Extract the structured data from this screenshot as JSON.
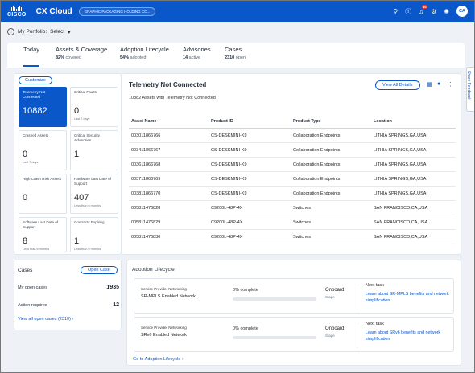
{
  "header": {
    "logo_text": "CISCO",
    "app_title": "CX Cloud",
    "company_chip": "GRAPHIC PACKAGING HOLDING CO...",
    "notification_count": "10",
    "user_initials": "CA",
    "icons": [
      "search-icon",
      "help-icon",
      "bell-icon",
      "settings-icon",
      "gear-icon",
      "avatar"
    ]
  },
  "portfolio": {
    "label": "My Portfolio:",
    "value": "Select"
  },
  "tabs": [
    {
      "label": "Today",
      "sub": "",
      "bold": ""
    },
    {
      "label": "Assets & Coverage",
      "bold": "82%",
      "sub": "covered"
    },
    {
      "label": "Adoption Lifecycle",
      "bold": "54%",
      "sub": "adopted"
    },
    {
      "label": "Advisories",
      "bold": "14",
      "sub": "active"
    },
    {
      "label": "Cases",
      "bold": "2310",
      "sub": "open"
    }
  ],
  "feedback": "Share Feedback",
  "kpis": {
    "customize": "Customize",
    "items": [
      {
        "label": "Telemetry Not Connected",
        "value": "10882",
        "sub": ""
      },
      {
        "label": "Critical Faults",
        "value": "0",
        "sub": "Last 7 days"
      },
      {
        "label": "Crashed Assets",
        "value": "0",
        "sub": "Last 7 days"
      },
      {
        "label": "Critical Security Advisories",
        "value": "1",
        "sub": ""
      },
      {
        "label": "High Crash Risk Assets",
        "value": "0",
        "sub": ""
      },
      {
        "label": "Hardware Last Date of Support",
        "value": "407",
        "sub": "Less than 6 months"
      },
      {
        "label": "Software Last Date of Support",
        "value": "8",
        "sub": "Less than 6 months"
      },
      {
        "label": "Contracts Expiring",
        "value": "1",
        "sub": "Less than 6 months"
      }
    ]
  },
  "telemetry": {
    "title": "Telemetry Not Connected",
    "subtitle": "10882 Assets with Telemetry Not Connected",
    "view_all": "View All Details",
    "columns": [
      "Asset Name",
      "Product ID",
      "Product Type",
      "Location"
    ],
    "rows": [
      [
        "003011866766",
        "CS-DESKMINI-K9",
        "Collaboration Endpoints",
        "LITHIA SPRINGS,GA,USA"
      ],
      [
        "003411866767",
        "CS-DESKMINI-K9",
        "Collaboration Endpoints",
        "LITHIA SPRINGS,GA,USA"
      ],
      [
        "003611866768",
        "CS-DESKMINI-K9",
        "Collaboration Endpoints",
        "LITHIA SPRINGS,GA,USA"
      ],
      [
        "003711866769",
        "CS-DESKMINI-K9",
        "Collaboration Endpoints",
        "LITHIA SPRINGS,GA,USA"
      ],
      [
        "003811866770",
        "CS-DESKMINI-K9",
        "Collaboration Endpoints",
        "LITHIA SPRINGS,GA,USA"
      ],
      [
        "005811476828",
        "C9200L-48P-4X",
        "Switches",
        "SAN FRANCISCO,CA,USA"
      ],
      [
        "005811476829",
        "C9200L-48P-4X",
        "Switches",
        "SAN FRANCISCO,CA,USA"
      ],
      [
        "005811476830",
        "C9200L-48P-4X",
        "Switches",
        "SAN FRANCISCO,CA,USA"
      ]
    ]
  },
  "cases": {
    "title": "Cases",
    "open_button": "Open Case",
    "my_open_label": "My open cases",
    "my_open_value": "1935",
    "action_label": "Action required",
    "action_value": "12",
    "view_all": "View all open cases (2310) ›"
  },
  "adoption": {
    "title": "Adoption Lifecycle",
    "cards": [
      {
        "category": "Service Provider Networking",
        "name": "SR-MPLS Enabled Network",
        "percent_text": "0% complete",
        "progress": 0,
        "stage": "Onboard",
        "stage_label": "Stage",
        "next_task_label": "Next task",
        "next_task": "Learn about SR-MPLS benefits and network simplification"
      },
      {
        "category": "Service Provider Networking",
        "name": "SRv6 Enabled Network",
        "percent_text": "0% complete",
        "progress": 0,
        "stage": "Onboard",
        "stage_label": "Stage",
        "next_task_label": "Next task",
        "next_task": "Learn about SRv6 benefits and network simplification"
      }
    ],
    "link": "Go to Adoption Lifecycle ›"
  },
  "colors": {
    "brand": "#0a57c9",
    "panel": "#ffffff",
    "background": "#eef2f6"
  }
}
